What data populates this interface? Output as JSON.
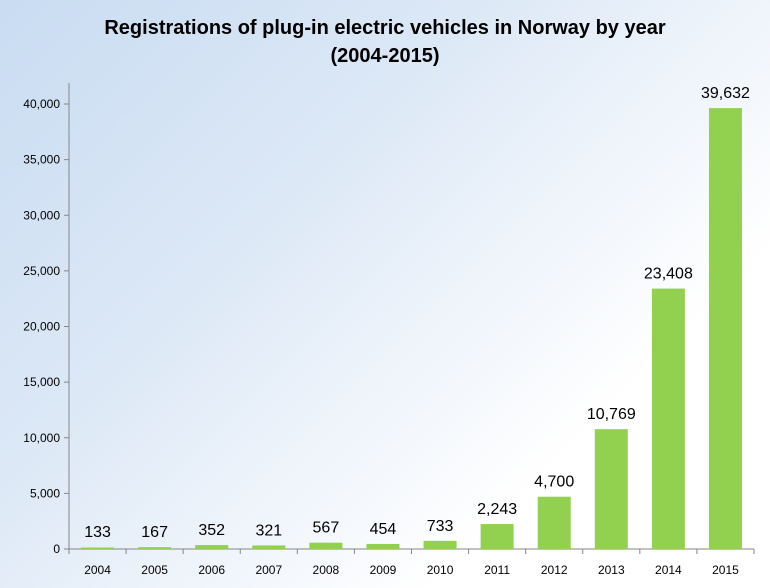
{
  "chart_data": {
    "type": "bar",
    "title": "Registrations of plug-in electric vehicles in Norway by year",
    "subtitle": "(2004-2015)",
    "categories": [
      "2004",
      "2005",
      "2006",
      "2007",
      "2008",
      "2009",
      "2010",
      "2011",
      "2012",
      "2013",
      "2014",
      "2015"
    ],
    "values": [
      133,
      167,
      352,
      321,
      567,
      454,
      733,
      2243,
      4700,
      10769,
      23408,
      39632
    ],
    "value_labels": [
      "133",
      "167",
      "352",
      "321",
      "567",
      "454",
      "733",
      "2,243",
      "4,700",
      "10,769",
      "23,408",
      "39,632"
    ],
    "yticks": [
      "0",
      "5,000",
      "10,000",
      "15,000",
      "20,000",
      "25,000",
      "30,000",
      "35,000",
      "40,000"
    ],
    "ylim": [
      0,
      42000
    ],
    "xlabel": "",
    "ylabel": "",
    "grid": false,
    "bar_color": "#92d050"
  }
}
